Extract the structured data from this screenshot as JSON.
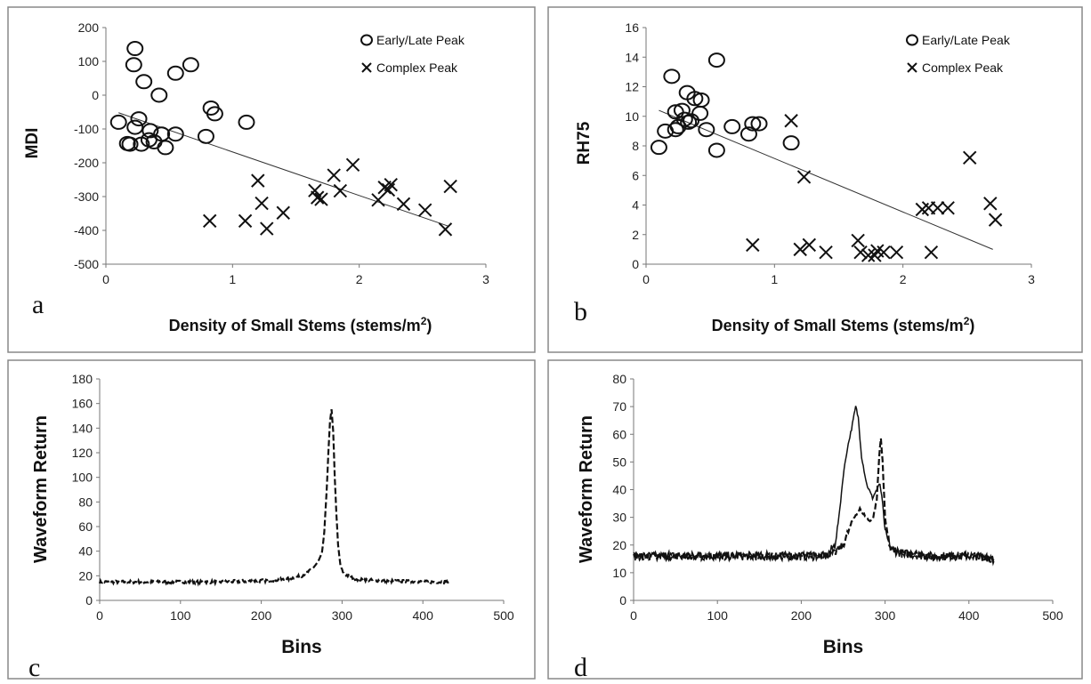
{
  "chart_data": [
    {
      "panel_label": "a",
      "type": "scatter",
      "xlabel": "Density of Small Stems (stems/m",
      "xlabel_sup": "2",
      "xlabel_end": ")",
      "ylabel": "MDI",
      "xlim": [
        0,
        3
      ],
      "ylim": [
        -500,
        200
      ],
      "xticks": [
        0,
        1,
        2,
        3
      ],
      "yticks": [
        -500,
        -400,
        -300,
        -200,
        -100,
        0,
        100,
        200
      ],
      "legend": [
        "Early/Late Peak",
        "Complex Peak"
      ],
      "legend_position": "top-right",
      "trendline": {
        "x": [
          0.1,
          2.7
        ],
        "y": [
          -52,
          -387
        ]
      },
      "series": [
        {
          "name": "Early/Late Peak",
          "marker": "circle",
          "x": [
            0.23,
            0.22,
            0.3,
            0.55,
            0.67,
            0.42,
            0.83,
            0.86,
            1.11,
            0.1,
            0.26,
            0.23,
            0.35,
            0.44,
            0.55,
            0.79,
            0.34,
            0.28,
            0.38,
            0.17,
            0.19,
            0.47
          ],
          "y": [
            138,
            90,
            40,
            65,
            90,
            0,
            -38,
            -55,
            -80,
            -80,
            -70,
            -95,
            -105,
            -115,
            -115,
            -122,
            -132,
            -145,
            -138,
            -143,
            -145,
            -155
          ]
        },
        {
          "name": "Complex Peak",
          "marker": "x",
          "x": [
            0.82,
            1.1,
            1.2,
            1.23,
            1.27,
            1.4,
            1.65,
            1.67,
            1.7,
            1.8,
            1.85,
            1.95,
            2.15,
            2.2,
            2.23,
            2.25,
            2.35,
            2.52,
            2.68,
            2.72
          ],
          "y": [
            -372,
            -372,
            -253,
            -320,
            -395,
            -348,
            -282,
            -303,
            -308,
            -237,
            -283,
            -206,
            -310,
            -273,
            -280,
            -265,
            -322,
            -340,
            -397,
            -270
          ]
        }
      ]
    },
    {
      "panel_label": "b",
      "type": "scatter",
      "xlabel": "Density of Small Stems (stems/m",
      "xlabel_sup": "2",
      "xlabel_end": ")",
      "ylabel": "RH75",
      "xlim": [
        0,
        3
      ],
      "ylim": [
        0,
        16
      ],
      "xticks": [
        0,
        1,
        2,
        3
      ],
      "yticks": [
        0,
        2,
        4,
        6,
        8,
        10,
        12,
        14,
        16
      ],
      "legend": [
        "Early/Late Peak",
        "Complex Peak"
      ],
      "legend_position": "top-right",
      "trendline": {
        "x": [
          0.1,
          2.7
        ],
        "y": [
          10.4,
          1.0
        ]
      },
      "series": [
        {
          "name": "Early/Late Peak",
          "marker": "circle",
          "x": [
            0.55,
            0.2,
            0.32,
            0.38,
            0.43,
            0.28,
            0.23,
            0.42,
            0.3,
            0.35,
            0.33,
            0.67,
            0.83,
            0.88,
            0.25,
            0.23,
            0.47,
            0.15,
            0.8,
            1.13,
            0.1,
            0.55
          ],
          "y": [
            13.8,
            12.7,
            11.6,
            11.2,
            11.1,
            10.4,
            10.3,
            10.2,
            9.8,
            9.7,
            9.6,
            9.3,
            9.5,
            9.5,
            9.3,
            9.1,
            9.1,
            9.0,
            8.8,
            8.2,
            7.9,
            7.7
          ]
        },
        {
          "name": "Complex Peak",
          "marker": "x",
          "x": [
            0.83,
            1.13,
            1.23,
            1.2,
            1.27,
            1.4,
            1.65,
            1.67,
            1.73,
            1.78,
            1.8,
            1.85,
            1.95,
            2.15,
            2.2,
            2.22,
            2.27,
            2.35,
            2.52,
            2.68,
            2.72
          ],
          "y": [
            1.3,
            9.7,
            5.9,
            1.0,
            1.3,
            0.8,
            1.6,
            0.8,
            0.6,
            0.6,
            0.9,
            0.8,
            0.8,
            3.7,
            3.8,
            0.8,
            3.8,
            3.8,
            7.2,
            4.1,
            3.0
          ]
        }
      ]
    },
    {
      "panel_label": "c",
      "type": "line",
      "xlabel": "Bins",
      "ylabel": "Waveform Return",
      "xlim": [
        0,
        500
      ],
      "ylim": [
        0,
        180
      ],
      "xticks": [
        0,
        100,
        200,
        300,
        400,
        500
      ],
      "yticks": [
        0,
        20,
        40,
        60,
        80,
        100,
        120,
        140,
        160,
        180
      ],
      "series": [
        {
          "name": "waveform",
          "style": "dashed",
          "noise": 1.2,
          "x": [
            0,
            50,
            100,
            150,
            200,
            230,
            250,
            260,
            265,
            270,
            275,
            278,
            281,
            283,
            285,
            287,
            289,
            291,
            293,
            295,
            298,
            302,
            310,
            320,
            350,
            400,
            432
          ],
          "y": [
            15,
            15,
            15,
            15,
            16,
            17,
            20,
            24,
            27,
            31,
            38,
            55,
            90,
            120,
            145,
            155,
            138,
            100,
            70,
            45,
            28,
            22,
            19,
            17,
            16,
            15,
            15
          ]
        }
      ]
    },
    {
      "panel_label": "d",
      "type": "line",
      "xlabel": "Bins",
      "ylabel": "Waveform Return",
      "xlim": [
        0,
        500
      ],
      "ylim": [
        0,
        80
      ],
      "xticks": [
        0,
        100,
        200,
        300,
        400,
        500
      ],
      "yticks": [
        0,
        10,
        20,
        30,
        40,
        50,
        60,
        70,
        80
      ],
      "series": [
        {
          "name": "solid",
          "style": "solid",
          "noise": 1.6,
          "x": [
            0,
            100,
            200,
            230,
            240,
            245,
            250,
            255,
            260,
            265,
            268,
            272,
            278,
            285,
            290,
            294,
            297,
            300,
            305,
            310,
            320,
            350,
            400,
            430
          ],
          "y": [
            16,
            16,
            16,
            16,
            20,
            30,
            45,
            55,
            62,
            70,
            66,
            52,
            42,
            37,
            40,
            42,
            35,
            25,
            20,
            18,
            17,
            16,
            16,
            16
          ]
        },
        {
          "name": "dashed",
          "style": "dashed",
          "noise": 1.3,
          "x": [
            0,
            100,
            200,
            240,
            250,
            255,
            260,
            265,
            270,
            275,
            280,
            285,
            290,
            293,
            295,
            297,
            300,
            305,
            310,
            320,
            350,
            400,
            430
          ],
          "y": [
            16,
            16,
            16,
            17,
            20,
            24,
            28,
            31,
            33,
            31,
            29,
            29,
            36,
            52,
            59,
            50,
            30,
            20,
            18,
            17,
            16,
            16,
            15
          ]
        }
      ]
    }
  ]
}
